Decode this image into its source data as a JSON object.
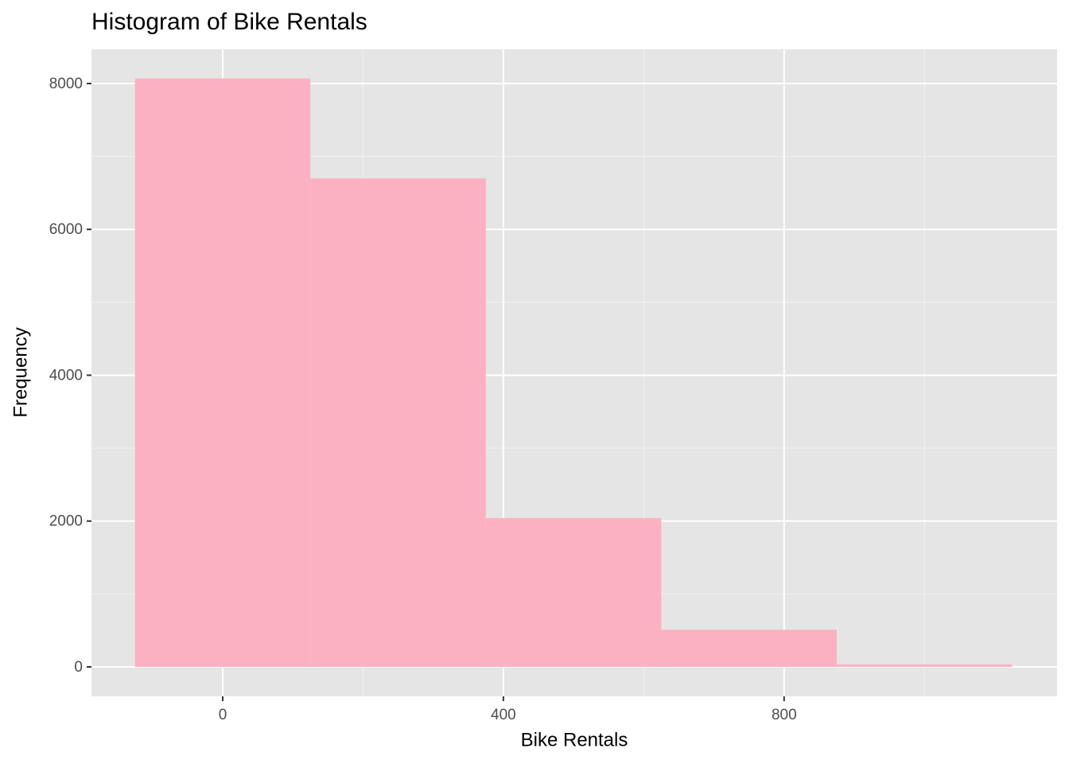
{
  "chart_data": {
    "type": "histogram",
    "title": "Histogram of Bike Rentals",
    "x_label": "Bike Rentals",
    "y_label": "Frequency",
    "bins": [
      -125,
      125,
      375,
      625,
      875,
      1125
    ],
    "values": [
      8070,
      6700,
      2040,
      510,
      35
    ],
    "color": "#fcb1c3",
    "xlim": [
      -187,
      1189
    ],
    "xticks": [
      0,
      400,
      800
    ],
    "x_minor_grid": [
      200,
      600,
      1000
    ],
    "ylim": [
      -404,
      8469
    ],
    "yticks": [
      0,
      2000,
      4000,
      6000,
      8000
    ],
    "y_minor_grid": [
      1000,
      3000,
      5000,
      7000
    ],
    "grid": true
  }
}
